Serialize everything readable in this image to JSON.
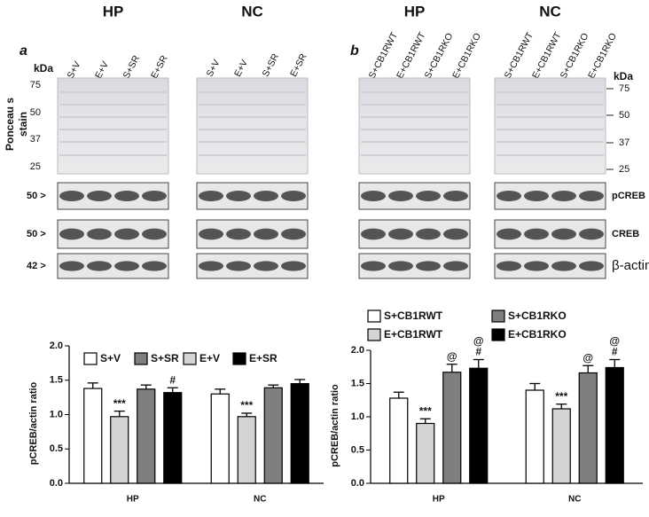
{
  "blots": {
    "panel_a": {
      "letter": "a",
      "kda_label": "kDa",
      "markers": [
        75,
        50,
        37,
        25
      ],
      "stain_label": [
        "Ponceau s",
        "stain"
      ],
      "groups": [
        {
          "title": "HP",
          "lanes": [
            "S+V",
            "E+V",
            "S+SR",
            "E+SR"
          ]
        },
        {
          "title": "NC",
          "lanes": [
            "S+V",
            "E+V",
            "S+SR",
            "E+SR"
          ]
        }
      ],
      "row_labels": [
        "50 >",
        "50 >",
        "42 >"
      ]
    },
    "panel_b": {
      "letter": "b",
      "kda_label": "kDa",
      "markers": [
        75,
        50,
        37,
        25
      ],
      "groups": [
        {
          "title": "HP",
          "lanes": [
            "S+CB1RWT",
            "E+CB1RWT",
            "S+CB1RKO",
            "E+CB1RKO"
          ]
        },
        {
          "title": "NC",
          "lanes": [
            "S+CB1RWT",
            "E+CB1RWT",
            "S+CB1RKO",
            "E+CB1RKO"
          ]
        }
      ],
      "row_labels": [
        "pCREB",
        "CREB",
        "β-actin"
      ]
    }
  },
  "chart_data": [
    {
      "type": "bar",
      "y_label": "pCREB/actin ratio",
      "categories": [
        "HP",
        "NC"
      ],
      "ylim": [
        0,
        2.0
      ],
      "yticks": [
        {
          "value": 0,
          "label": "0.0"
        },
        {
          "value": 0.5,
          "label": "0.5"
        },
        {
          "value": 1,
          "label": "1.0"
        },
        {
          "value": 1.5,
          "label": "1.5"
        },
        {
          "value": 2,
          "label": "2.0"
        }
      ],
      "series": [
        {
          "name": "S+V",
          "color": "#ffffff",
          "values": [
            1.38,
            1.3
          ],
          "errors": [
            0.08,
            0.07
          ],
          "annotations": [
            null,
            null
          ]
        },
        {
          "name": "S+SR",
          "color": "#7f7f7f",
          "values": [
            1.37,
            1.39
          ],
          "errors": [
            0.06,
            0.04
          ],
          "annotations": [
            null,
            null
          ]
        },
        {
          "name": "E+V",
          "color": "#d4d4d4",
          "values": [
            0.97,
            0.97
          ],
          "errors": [
            0.08,
            0.05
          ],
          "annotations": [
            [
              "***"
            ],
            [
              "***"
            ]
          ]
        },
        {
          "name": "E+SR",
          "color": "#000000",
          "values": [
            1.32,
            1.45
          ],
          "errors": [
            0.07,
            0.06
          ],
          "annotations": [
            [
              "#"
            ],
            null
          ]
        }
      ]
    },
    {
      "type": "bar",
      "y_label": "pCREB/actin ratio",
      "categories": [
        "HP",
        "NC"
      ],
      "ylim": [
        0,
        2.0
      ],
      "yticks": [
        {
          "value": 0,
          "label": "0.0"
        },
        {
          "value": 0.5,
          "label": "0.5"
        },
        {
          "value": 1,
          "label": "1.0"
        },
        {
          "value": 1.5,
          "label": "1.5"
        },
        {
          "value": 2,
          "label": "2.0"
        }
      ],
      "series": [
        {
          "name": "S+CB1RWT",
          "color": "#ffffff",
          "values": [
            1.28,
            1.4
          ],
          "errors": [
            0.09,
            0.1
          ],
          "annotations": [
            null,
            null
          ]
        },
        {
          "name": "E+CB1RWT",
          "color": "#d4d4d4",
          "values": [
            0.9,
            1.12
          ],
          "errors": [
            0.07,
            0.07
          ],
          "annotations": [
            [
              "***"
            ],
            [
              "***"
            ]
          ]
        },
        {
          "name": "S+CB1RKO",
          "color": "#7f7f7f",
          "values": [
            1.67,
            1.66
          ],
          "errors": [
            0.12,
            0.11
          ],
          "annotations": [
            [
              "@"
            ],
            [
              "@"
            ]
          ]
        },
        {
          "name": "E+CB1RKO",
          "color": "#000000",
          "values": [
            1.73,
            1.74
          ],
          "errors": [
            0.13,
            0.12
          ],
          "annotations": [
            [
              "@",
              "#"
            ],
            [
              "@",
              "#"
            ]
          ]
        }
      ]
    }
  ]
}
